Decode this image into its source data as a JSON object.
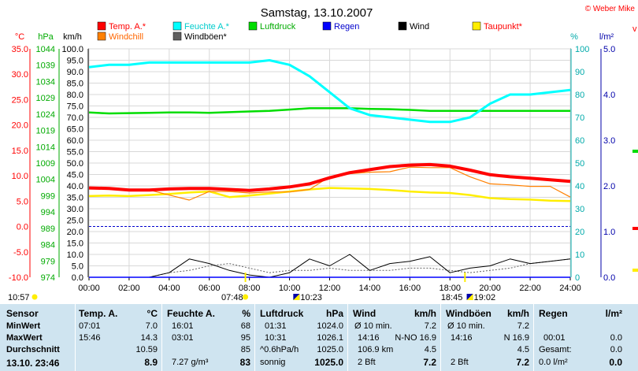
{
  "title": "Samstag, 13.10.2007",
  "copyright": "© Weber Mike",
  "chart_data": {
    "type": "line",
    "x": [
      "00:00",
      "01:00",
      "02:00",
      "03:00",
      "04:00",
      "05:00",
      "06:00",
      "07:00",
      "08:00",
      "09:00",
      "10:00",
      "11:00",
      "12:00",
      "13:00",
      "14:00",
      "15:00",
      "16:00",
      "17:00",
      "18:00",
      "19:00",
      "20:00",
      "21:00",
      "22:00",
      "23:00",
      "24:00"
    ],
    "xticks": [
      "00:00",
      "02:00",
      "04:00",
      "06:00",
      "08:00",
      "10:00",
      "12:00",
      "14:00",
      "16:00",
      "18:00",
      "20:00",
      "22:00",
      "24:00"
    ],
    "axes": [
      {
        "unit": "°C",
        "ticks": [
          "35.0",
          "30.0",
          "25.0",
          "20.0",
          "15.0",
          "10.0",
          "5.0",
          "0.0",
          "-5.0",
          "-10.0"
        ],
        "range": [
          -10,
          35
        ],
        "color": "#ff0000"
      },
      {
        "unit": "hPa",
        "ticks": [
          "1044",
          "1039",
          "1034",
          "1029",
          "1024",
          "1019",
          "1014",
          "1009",
          "1004",
          "999",
          "994",
          "989",
          "984",
          "979",
          "974"
        ],
        "range": [
          974,
          1044
        ],
        "color": "#00aa00"
      },
      {
        "unit": "km/h",
        "ticks": [
          "100.0",
          "95.0",
          "90.0",
          "85.0",
          "80.0",
          "75.0",
          "70.0",
          "65.0",
          "60.0",
          "55.0",
          "50.0",
          "45.0",
          "40.0",
          "35.0",
          "30.0",
          "25.0",
          "20.0",
          "15.0",
          "10.0",
          "5.0",
          "0.0"
        ],
        "range": [
          0,
          100
        ],
        "color": "#000000"
      },
      {
        "unit": "%",
        "ticks": [
          "100",
          "90",
          "80",
          "70",
          "60",
          "50",
          "40",
          "30",
          "20",
          "10",
          "0"
        ],
        "range": [
          0,
          100
        ],
        "color": "#00aaaa"
      },
      {
        "unit": "l/m²",
        "ticks": [
          "5.0",
          "4.0",
          "3.0",
          "2.0",
          "1.0",
          "0.0"
        ],
        "range": [
          0,
          5
        ],
        "color": "#0000aa"
      }
    ],
    "series": [
      {
        "name": "Temp. A.*",
        "color": "#ff0000",
        "axis": "°C",
        "values": [
          7.6,
          7.5,
          7.2,
          7.2,
          7.4,
          7.5,
          7.5,
          7.3,
          7.1,
          7.4,
          7.8,
          8.4,
          9.6,
          10.6,
          11.2,
          11.8,
          12.1,
          12.2,
          11.9,
          11.1,
          10.2,
          9.8,
          9.5,
          9.2,
          8.9
        ]
      },
      {
        "name": "Windchill",
        "color": "#ff8000",
        "axis": "°C",
        "values": [
          7.6,
          7.4,
          7.1,
          7.2,
          6.2,
          5.2,
          6.9,
          6.9,
          6.6,
          6.8,
          6.8,
          7.3,
          9.8,
          10.4,
          10.7,
          10.8,
          11.7,
          11.6,
          11.6,
          9.8,
          8.4,
          8.2,
          7.9,
          7.9,
          5.8
        ]
      },
      {
        "name": "Feuchte A.*",
        "color": "#00ffff",
        "axis": "%",
        "values": [
          92,
          93,
          93,
          94,
          94,
          94,
          94,
          94,
          94,
          95,
          93,
          88,
          81,
          74,
          71,
          70,
          69,
          68,
          68,
          70,
          76,
          80,
          80,
          81,
          82
        ]
      },
      {
        "name": "Windböen*",
        "color": "#606060",
        "axis": "km/h",
        "values": [
          0,
          0,
          0,
          0,
          2,
          3,
          5,
          6,
          4,
          2,
          3,
          3,
          4,
          3,
          3,
          3,
          4,
          4,
          3,
          2,
          3,
          4,
          6,
          7,
          8
        ]
      },
      {
        "name": "Luftdruck",
        "color": "#00dd00",
        "axis": "hPa",
        "values": [
          1024.5,
          1024.2,
          1024.3,
          1024.4,
          1024.5,
          1024.5,
          1024.4,
          1024.6,
          1024.8,
          1025.0,
          1025.4,
          1025.8,
          1025.8,
          1025.8,
          1025.6,
          1025.5,
          1025.3,
          1025.0,
          1025.0,
          1025.0,
          1025.0,
          1025.0,
          1025.0,
          1025.0,
          1025.0
        ]
      },
      {
        "name": "Regen",
        "color": "#0000ff",
        "axis": "l/m²",
        "values": [
          0,
          0,
          0,
          0,
          0,
          0,
          0,
          0,
          0,
          0,
          0,
          0,
          0,
          0,
          0,
          0,
          0,
          0,
          0,
          0,
          0,
          0,
          0,
          0,
          0
        ]
      },
      {
        "name": "Wind",
        "color": "#000000",
        "axis": "km/h",
        "values": [
          0,
          0,
          0,
          0,
          2,
          8,
          6,
          3,
          1,
          0,
          2,
          8,
          5,
          10,
          3,
          6,
          7,
          9,
          2,
          4,
          5,
          8,
          6,
          7,
          8
        ]
      },
      {
        "name": "Taupunkt*",
        "color": "#ffee00",
        "axis": "°C",
        "values": [
          6.0,
          6.1,
          6.0,
          6.2,
          6.4,
          6.7,
          6.9,
          5.8,
          6.1,
          6.5,
          6.9,
          7.3,
          7.6,
          7.5,
          7.4,
          7.2,
          6.9,
          6.7,
          6.6,
          6.2,
          5.6,
          5.4,
          5.3,
          5.1,
          5.0
        ]
      }
    ],
    "reference_line": {
      "value": 0.0,
      "axis": "°C",
      "style": "dashed",
      "color": "#0000cc"
    },
    "sun_markers": [
      "10:57",
      "07:48",
      "18:45"
    ],
    "moon_markers": [
      "10:23",
      "19:02"
    ],
    "grid": true
  },
  "table": {
    "sensor": {
      "header": "Sensor",
      "rows": [
        "MinWert",
        "MaxWert",
        "Durchschnitt",
        "13.10. 23:46"
      ]
    },
    "temp": {
      "header": "Temp. A.",
      "unit": "°C",
      "rows": [
        [
          "07:01",
          "7.0"
        ],
        [
          "15:46",
          "14.3"
        ],
        [
          "",
          "10.59"
        ],
        [
          "",
          "8.9"
        ]
      ]
    },
    "feuchte": {
      "header": "Feuchte A.",
      "unit": "%",
      "rows": [
        [
          "16:01",
          "68"
        ],
        [
          "03:01",
          "95"
        ],
        [
          "",
          "85"
        ],
        [
          "7.27 g/m³",
          "83"
        ]
      ]
    },
    "luftdruck": {
      "header": "Luftdruck",
      "unit": "hPa",
      "rows": [
        [
          "01:31",
          "1024.0"
        ],
        [
          "10:31",
          "1026.1"
        ],
        [
          "^0.6hPa/h",
          "1025.0"
        ],
        [
          "sonnig",
          "1025.0"
        ]
      ]
    },
    "wind": {
      "header": "Wind",
      "unit": "km/h",
      "rows": [
        [
          "Ø 10 min.",
          "7.2"
        ],
        [
          "14:16",
          "N-NO 16.9"
        ],
        [
          "106.9 km",
          "4.5"
        ],
        [
          "2 Bft",
          "7.2"
        ]
      ]
    },
    "windboeen": {
      "header": "Windböen",
      "unit": "km/h",
      "rows": [
        [
          "Ø 10 min.",
          "7.2"
        ],
        [
          "14:16",
          "N 16.9"
        ],
        [
          "",
          "4.5"
        ],
        [
          "2 Bft",
          "7.2"
        ]
      ]
    },
    "regen": {
      "header": "Regen",
      "unit": "l/m²",
      "rows": [
        [
          "",
          ""
        ],
        [
          "00:01",
          "0.0"
        ],
        [
          "Gesamt:",
          "0.0"
        ],
        [
          "0.0 l/m²",
          "0.0"
        ]
      ]
    }
  }
}
